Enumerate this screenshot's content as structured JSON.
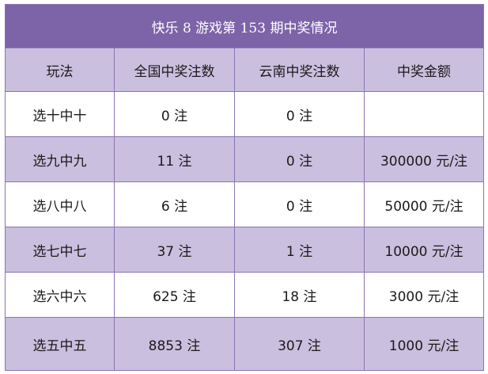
{
  "table": {
    "title": "快乐 8 游戏第 153 期中奖情况",
    "headers": [
      "玩法",
      "全国中奖注数",
      "云南中奖注数",
      "中奖金额"
    ],
    "rows": [
      [
        "选十中十",
        "0 注",
        "0 注",
        ""
      ],
      [
        "选九中九",
        "11 注",
        "0 注",
        "300000 元/注"
      ],
      [
        "选八中八",
        "6 注",
        "0 注",
        "50000 元/注"
      ],
      [
        "选七中七",
        "37 注",
        "1 注",
        "10000 元/注"
      ],
      [
        "选六中六",
        "625 注",
        "18 注",
        "3000 元/注"
      ],
      [
        "选五中五",
        "8853 注",
        "307 注",
        "1000 元/注"
      ]
    ]
  },
  "colors": {
    "title_bg": "#7d63a8",
    "stripe_bg": "#cbbfdf",
    "border": "#8b74b0"
  }
}
